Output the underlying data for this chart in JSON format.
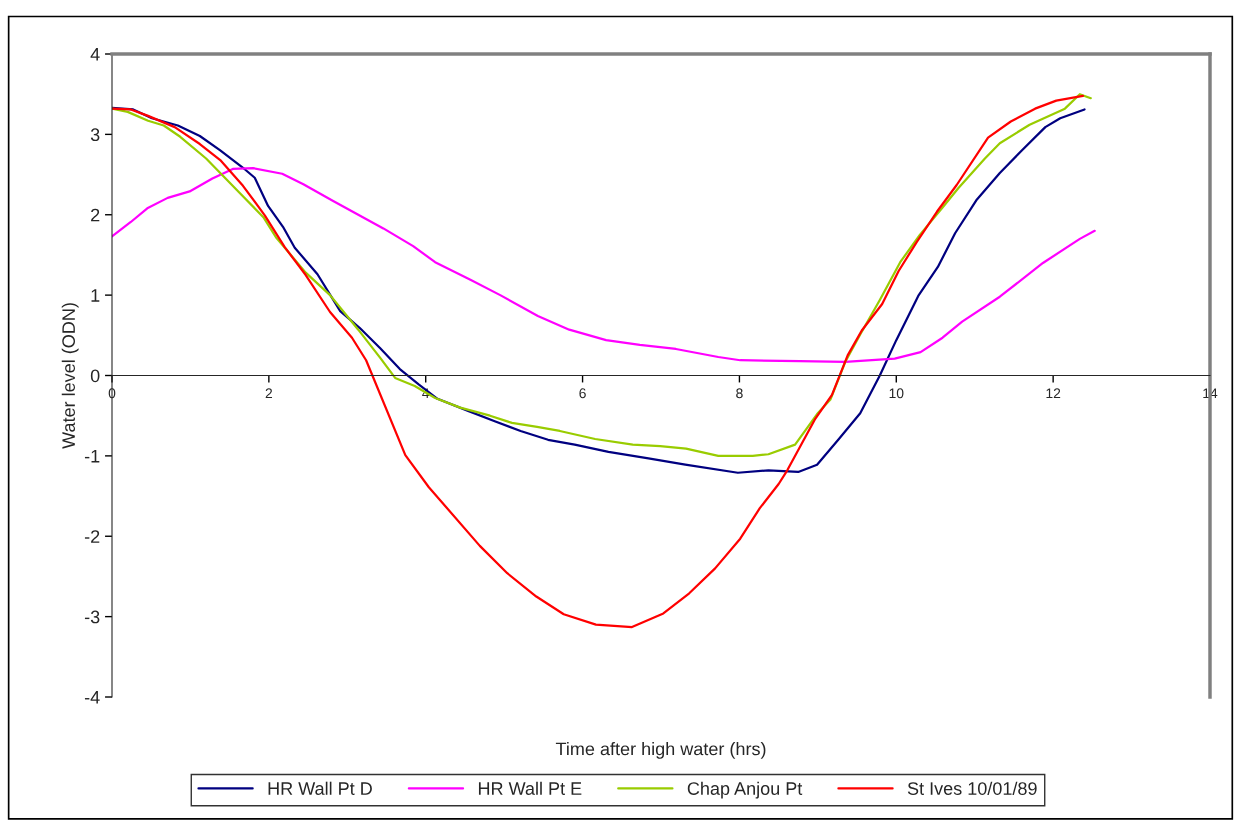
{
  "chart_data": {
    "type": "line",
    "xlabel": "Time after high water (hrs)",
    "ylabel": "Water level (ODN)",
    "xlim": [
      0,
      14
    ],
    "ylim": [
      -4,
      4
    ],
    "xticks": [
      0,
      2,
      4,
      6,
      8,
      10,
      12,
      14
    ],
    "yticks": [
      -4,
      -3,
      -2,
      -1,
      0,
      1,
      2,
      3,
      4
    ],
    "grid": false,
    "legend": "bottom",
    "marker": "none",
    "line_style": "solid",
    "series": [
      {
        "name": "HR Wall Pt D",
        "color": "#000080",
        "x": [
          0,
          0.27,
          0.51,
          0.84,
          1.12,
          1.38,
          1.7,
          1.82,
          1.99,
          2.18,
          2.33,
          2.62,
          2.91,
          3.16,
          3.42,
          3.67,
          3.91,
          4.15,
          4.54,
          4.88,
          5.21,
          5.56,
          5.9,
          6.33,
          6.84,
          7.31,
          7.98,
          8.37,
          8.75,
          8.99,
          9.26,
          9.54,
          9.79,
          10.0,
          10.28,
          10.53,
          10.75,
          11.02,
          11.32,
          11.6,
          11.9,
          12.09,
          12.4
        ],
        "values": [
          3.33,
          3.31,
          3.2,
          3.11,
          2.98,
          2.8,
          2.56,
          2.46,
          2.11,
          1.85,
          1.59,
          1.26,
          0.8,
          0.59,
          0.34,
          0.08,
          -0.11,
          -0.29,
          -0.44,
          -0.57,
          -0.69,
          -0.8,
          -0.86,
          -0.95,
          -1.03,
          -1.11,
          -1.21,
          -1.18,
          -1.2,
          -1.11,
          -0.8,
          -0.47,
          0,
          0.44,
          0.99,
          1.35,
          1.77,
          2.18,
          2.52,
          2.8,
          3.09,
          3.2,
          3.31
        ]
      },
      {
        "name": "HR Wall Pt E",
        "color": "#ff00ff",
        "x": [
          0,
          0.24,
          0.45,
          0.71,
          0.99,
          1.28,
          1.54,
          1.8,
          2.17,
          2.44,
          2.82,
          3.46,
          3.84,
          4.12,
          4.57,
          4.95,
          5.43,
          5.83,
          6.3,
          6.73,
          7.19,
          7.73,
          8.01,
          8.77,
          9.35,
          9.98,
          10.31,
          10.59,
          10.84,
          11.32,
          11.87,
          12.34,
          12.53
        ],
        "values": [
          1.73,
          1.91,
          2.08,
          2.21,
          2.29,
          2.45,
          2.57,
          2.58,
          2.51,
          2.38,
          2.17,
          1.83,
          1.61,
          1.41,
          1.19,
          1.0,
          0.74,
          0.57,
          0.44,
          0.38,
          0.33,
          0.23,
          0.19,
          0.18,
          0.17,
          0.21,
          0.29,
          0.47,
          0.67,
          0.98,
          1.4,
          1.7,
          1.8
        ]
      },
      {
        "name": "Chap Anjou Pt",
        "color": "#99cc00",
        "x": [
          0,
          0.2,
          0.46,
          0.66,
          0.87,
          1.2,
          1.61,
          1.93,
          2.09,
          2.47,
          2.78,
          3.14,
          3.42,
          3.61,
          3.86,
          4.12,
          4.44,
          4.82,
          5.1,
          5.42,
          5.71,
          6.16,
          6.64,
          6.99,
          7.32,
          7.73,
          8.17,
          8.37,
          8.71,
          8.99,
          9.16,
          9.35,
          9.54,
          9.79,
          10.05,
          10.3,
          10.59,
          10.79,
          11.13,
          11.32,
          11.7,
          12.15,
          12.34,
          12.48
        ],
        "values": [
          3.32,
          3.28,
          3.17,
          3.11,
          2.97,
          2.7,
          2.29,
          1.97,
          1.72,
          1.28,
          1.0,
          0.57,
          0.22,
          -0.03,
          -0.13,
          -0.28,
          -0.4,
          -0.5,
          -0.59,
          -0.64,
          -0.69,
          -0.79,
          -0.86,
          -0.88,
          -0.91,
          -1.0,
          -1.0,
          -0.98,
          -0.86,
          -0.48,
          -0.3,
          0.17,
          0.51,
          0.94,
          1.41,
          1.75,
          2.09,
          2.33,
          2.7,
          2.89,
          3.12,
          3.32,
          3.5,
          3.45
        ]
      },
      {
        "name": "St Ives 10/01/89",
        "color": "#ff0000",
        "x": [
          0,
          0.24,
          0.46,
          0.8,
          1.12,
          1.38,
          1.67,
          1.95,
          2.2,
          2.47,
          2.78,
          3.06,
          3.24,
          3.74,
          4.04,
          4.69,
          5.04,
          5.41,
          5.76,
          6.17,
          6.63,
          7.03,
          7.36,
          7.69,
          8.01,
          8.26,
          8.5,
          8.61,
          8.96,
          9.18,
          9.38,
          9.56,
          9.82,
          10.03,
          10.26,
          10.52,
          10.77,
          11.17,
          11.46,
          11.77,
          12.04,
          12.38
        ],
        "values": [
          3.32,
          3.31,
          3.23,
          3.09,
          2.88,
          2.68,
          2.36,
          1.99,
          1.6,
          1.25,
          0.79,
          0.47,
          0.19,
          -0.99,
          -1.39,
          -2.12,
          -2.46,
          -2.75,
          -2.97,
          -3.1,
          -3.13,
          -2.96,
          -2.71,
          -2.4,
          -2.03,
          -1.65,
          -1.35,
          -1.18,
          -0.55,
          -0.24,
          0.25,
          0.56,
          0.89,
          1.3,
          1.66,
          2.04,
          2.37,
          2.96,
          3.16,
          3.32,
          3.42,
          3.48
        ]
      }
    ]
  }
}
